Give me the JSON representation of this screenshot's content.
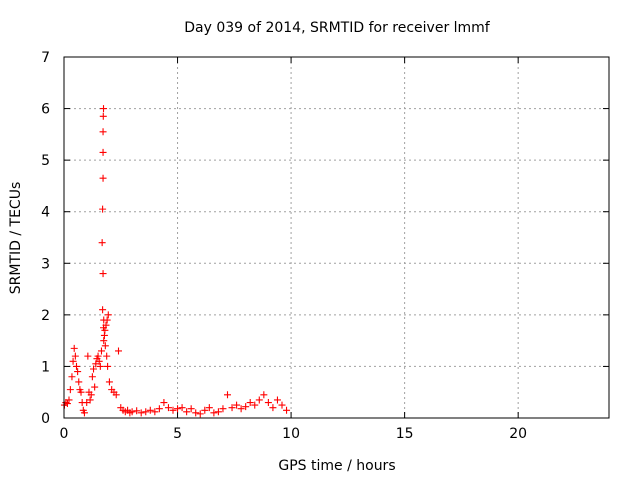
{
  "chart_data": {
    "type": "scatter",
    "title": "Day 039 of 2014, SRMTID for receiver lmmf",
    "xlabel": "GPS time / hours",
    "ylabel": "SRMTID / TECUs",
    "xlim": [
      0,
      24
    ],
    "ylim": [
      0,
      7
    ],
    "xticks": [
      0,
      5,
      10,
      15,
      20
    ],
    "yticks": [
      0,
      1,
      2,
      3,
      4,
      5,
      6,
      7
    ],
    "xtick_labels": [
      "0",
      "5",
      "10",
      "15",
      "20"
    ],
    "ytick_labels": [
      "0",
      "1",
      "2",
      "3",
      "4",
      "5",
      "6",
      "7"
    ],
    "grid": true,
    "legend": "none",
    "marker": "+",
    "color": "#ff0000",
    "series": [
      {
        "name": "SRMTID",
        "x": [
          0.02,
          0.08,
          0.15,
          0.22,
          0.28,
          0.35,
          0.4,
          0.45,
          0.5,
          0.55,
          0.6,
          0.65,
          0.7,
          0.75,
          0.8,
          0.85,
          0.9,
          1.0,
          1.05,
          1.1,
          1.15,
          1.2,
          1.25,
          1.3,
          1.35,
          1.4,
          1.45,
          1.5,
          1.55,
          1.6,
          1.65,
          1.7,
          1.72,
          1.75,
          1.8,
          1.85,
          1.9,
          1.95,
          2.0,
          2.1,
          2.2,
          2.3,
          2.4,
          2.5,
          2.6,
          2.7,
          2.8,
          2.9,
          3.0,
          3.2,
          3.4,
          3.6,
          3.8,
          4.0,
          4.2,
          4.4,
          4.6,
          4.8,
          5.0,
          5.2,
          5.4,
          5.6,
          5.8,
          6.0,
          6.2,
          6.4,
          6.6,
          6.8,
          7.0,
          7.2,
          7.4,
          7.6,
          7.8,
          8.0,
          8.2,
          8.4,
          8.6,
          8.8,
          9.0,
          9.2,
          9.4,
          9.6,
          9.8,
          1.68,
          1.7,
          1.72,
          1.72,
          1.72,
          1.73,
          1.74,
          1.74,
          1.75,
          1.78,
          1.82,
          1.88,
          1.92
        ],
        "y": [
          0.25,
          0.3,
          0.28,
          0.35,
          0.55,
          0.8,
          1.1,
          1.35,
          1.2,
          1.0,
          0.9,
          0.7,
          0.55,
          0.5,
          0.3,
          0.15,
          0.1,
          0.3,
          1.2,
          0.5,
          0.35,
          0.45,
          0.8,
          0.95,
          0.6,
          1.05,
          1.15,
          1.2,
          1.1,
          1.0,
          1.3,
          2.1,
          2.8,
          1.5,
          1.7,
          1.8,
          1.9,
          2.0,
          0.7,
          0.55,
          0.5,
          0.45,
          1.3,
          0.2,
          0.15,
          0.12,
          0.15,
          0.1,
          0.12,
          0.14,
          0.1,
          0.12,
          0.15,
          0.12,
          0.18,
          0.3,
          0.2,
          0.15,
          0.18,
          0.2,
          0.12,
          0.18,
          0.1,
          0.08,
          0.15,
          0.2,
          0.1,
          0.12,
          0.18,
          0.45,
          0.2,
          0.25,
          0.18,
          0.22,
          0.3,
          0.25,
          0.35,
          0.45,
          0.3,
          0.2,
          0.35,
          0.25,
          0.15,
          3.4,
          4.05,
          4.65,
          5.15,
          5.55,
          5.85,
          6.0,
          1.75,
          1.9,
          1.6,
          1.4,
          1.2,
          1.0
        ]
      }
    ]
  }
}
